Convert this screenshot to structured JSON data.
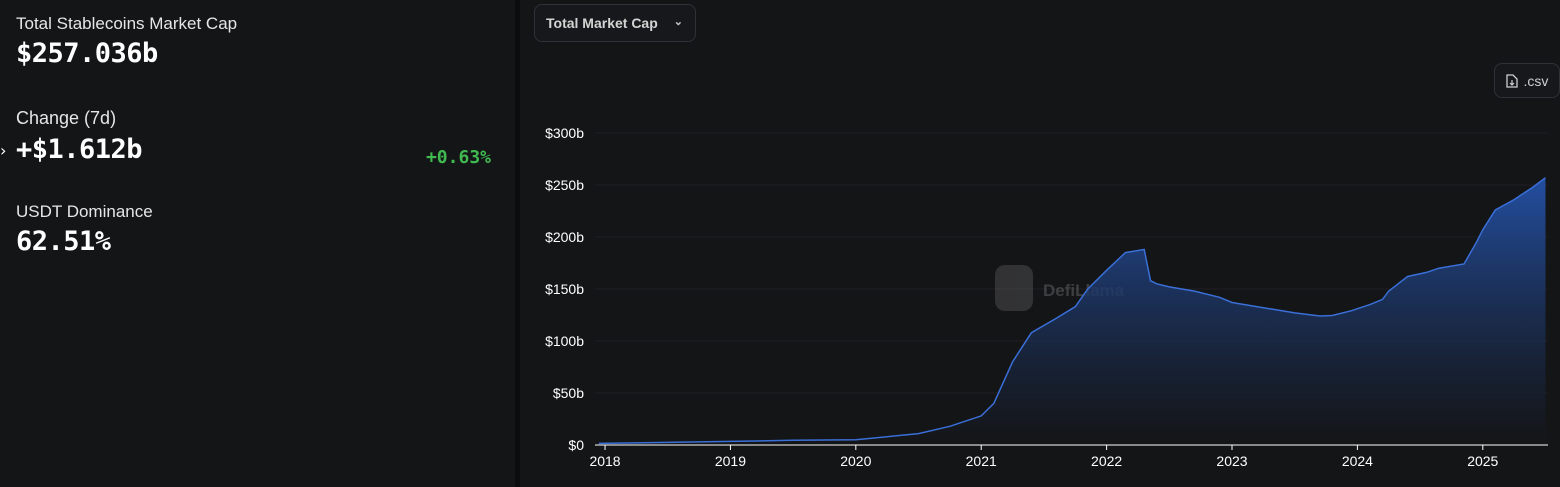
{
  "summary": {
    "total_label": "Total Stablecoins Market Cap",
    "total_value": "$257.036b",
    "change_label": "Change (7d)",
    "change_value": "+$1.612b",
    "change_pct": "+0.63%",
    "dominance_label": "USDT Dominance",
    "dominance_value": "62.51%"
  },
  "controls": {
    "metric_selected": "Total Market Cap",
    "csv_label": ".csv"
  },
  "watermark": "DefiLlama",
  "colors": {
    "background": "#141517",
    "line": "#3a6fd8",
    "positive": "#3fb950"
  },
  "chart_data": {
    "type": "area",
    "title": "",
    "xlabel": "",
    "ylabel": "",
    "ylim": [
      0,
      300
    ],
    "yticks": [
      "$0",
      "$50b",
      "$100b",
      "$150b",
      "$200b",
      "$250b",
      "$300b"
    ],
    "xticks": [
      "2018",
      "2019",
      "2020",
      "2021",
      "2022",
      "2023",
      "2024",
      "2025"
    ],
    "grid": true,
    "series": [
      {
        "x": [
          2017.95,
          2018.5,
          2019.0,
          2019.5,
          2020.0,
          2020.25,
          2020.5,
          2020.75,
          2021.0,
          2021.1,
          2021.25,
          2021.4,
          2021.6,
          2021.75,
          2021.85,
          2022.0,
          2022.15,
          2022.3,
          2022.35,
          2022.4,
          2022.5,
          2022.7,
          2022.9,
          2023.0,
          2023.25,
          2023.5,
          2023.7,
          2023.8,
          2023.95,
          2024.1,
          2024.2,
          2024.25,
          2024.4,
          2024.55,
          2024.65,
          2024.85,
          2024.95,
          2025.0,
          2025.1,
          2025.25,
          2025.4,
          2025.5
        ],
        "y": [
          1.5,
          2.5,
          3.5,
          4.5,
          5,
          8,
          11,
          18,
          28,
          40,
          80,
          108,
          122,
          133,
          150,
          168,
          185,
          188,
          158,
          155,
          152,
          148,
          142,
          137,
          132,
          127,
          124,
          124.5,
          129,
          135,
          140,
          148,
          162,
          166,
          170,
          174,
          195,
          207,
          226,
          236,
          248,
          257
        ]
      }
    ]
  }
}
